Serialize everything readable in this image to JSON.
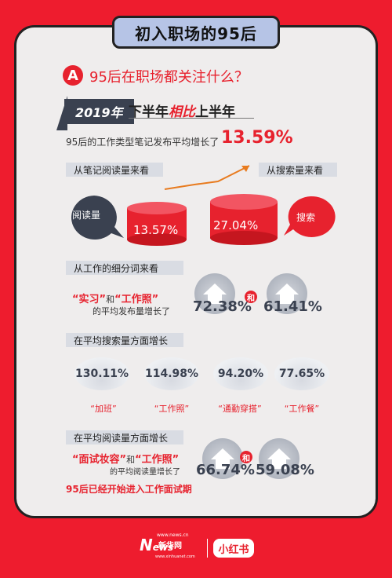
{
  "title": "初入职场的95后",
  "section_a": {
    "badge": "A",
    "question": "95后在职场都关注什么？",
    "year": "2019年",
    "compare_prefix": "下半年",
    "compare_mid": "相比",
    "compare_suffix": "上半年",
    "growth_text": "95后的工作类型笔记发布平均增长了",
    "growth_value": "13.59%"
  },
  "reading": {
    "label": "从笔记阅读量来看",
    "bubble": "阅读量",
    "value": "13.57%"
  },
  "search": {
    "label": "从搜索量来看",
    "bubble": "搜索",
    "value": "27.04%"
  },
  "keywords": {
    "label": "从工作的细分词来看",
    "kw1": "“实习”",
    "and_text": "和",
    "kw2": "“工作照”",
    "sub": "的平均发布量增长了",
    "v1": "72.38%",
    "and_badge": "和",
    "v2": "61.41%"
  },
  "search_growth": {
    "label": "在平均搜索量方面增长",
    "items": [
      {
        "value": "130.11%",
        "term": "“加班”"
      },
      {
        "value": "114.98%",
        "term": "“工作照”"
      },
      {
        "value": "94.20%",
        "term": "“通勤穿搭”"
      },
      {
        "value": "77.65%",
        "term": "“工作餐”"
      }
    ]
  },
  "read_growth": {
    "label": "在平均阅读量方面增长",
    "kw1": "“面试妆容”",
    "and_text": "和",
    "kw2": "“工作照”",
    "sub": "的平均阅读量增长了",
    "v1": "66.74%",
    "and_badge": "和",
    "v2": "59.08%",
    "footer": "95后已经开始进入工作面试期"
  },
  "logos": {
    "news_small_top": "www.news.cn",
    "news_brand_a": "N",
    "news_brand_b": "ews",
    "news_brand_c": "新华网",
    "news_small_bottom": "www.xinhuanet.com",
    "xhs": "小红书"
  },
  "colors": {
    "accent": "#e7222e",
    "dark": "#3a4150",
    "card": "#efeded"
  }
}
